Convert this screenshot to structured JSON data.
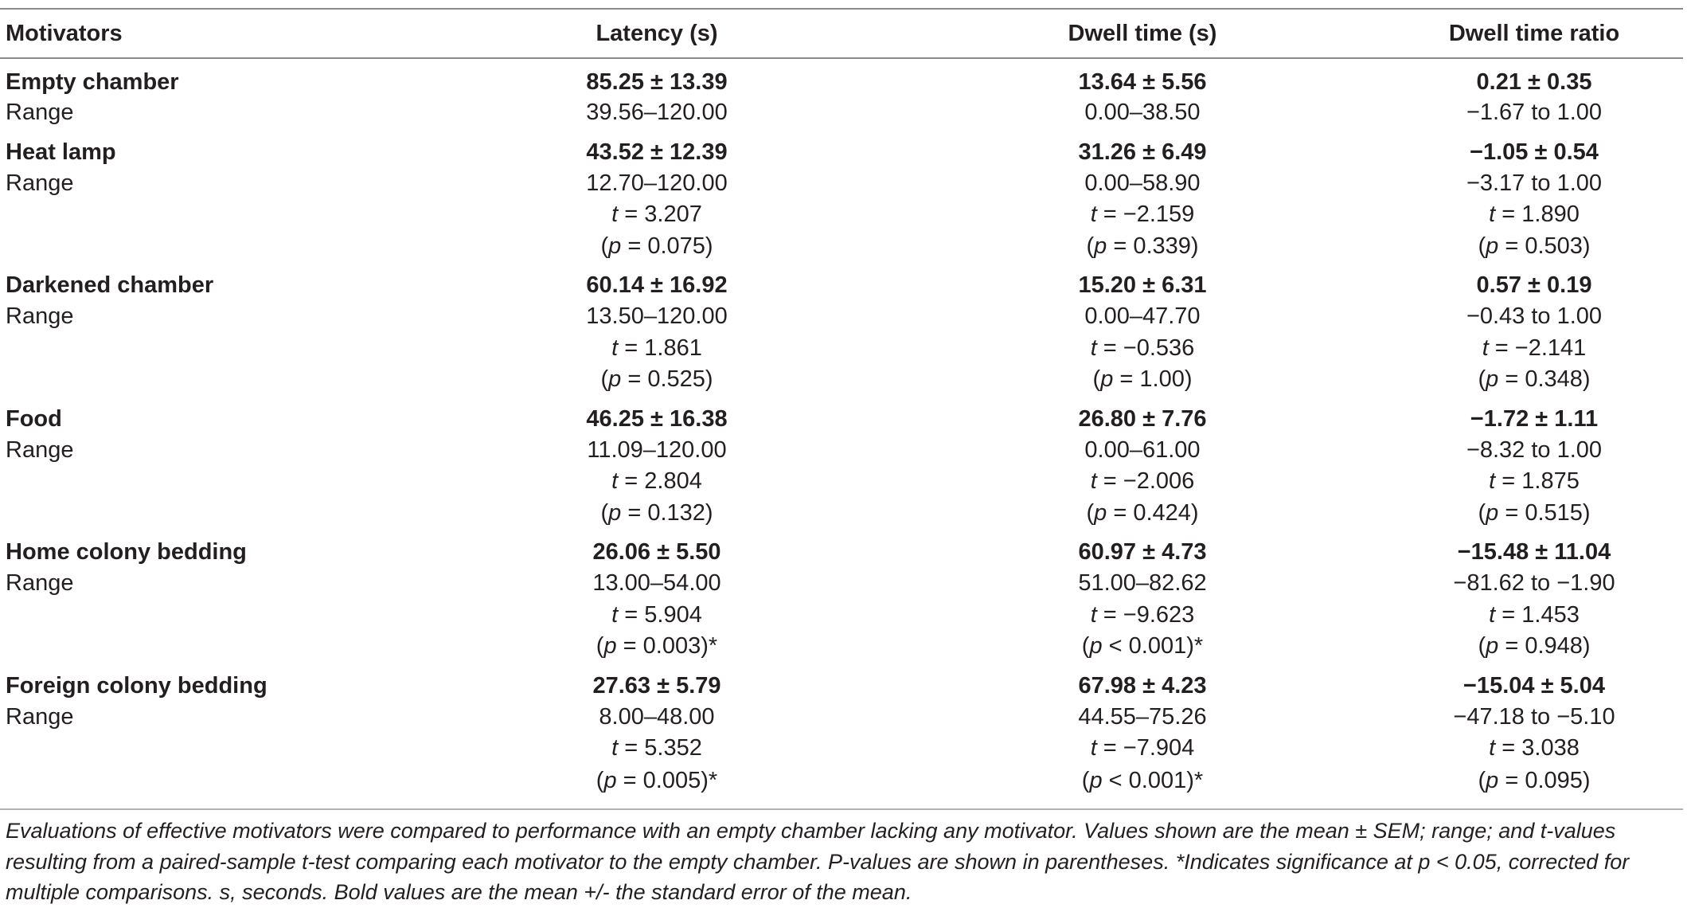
{
  "table": {
    "headers": [
      "Motivators",
      "Latency (s)",
      "Dwell time (s)",
      "Dwell time ratio"
    ],
    "groups": [
      {
        "name": "Empty chamber",
        "mean": [
          "85.25 ± 13.39",
          "13.64 ± 5.56",
          "0.21 ± 0.35"
        ],
        "range_label": "Range",
        "range": [
          "39.56–120.00",
          "0.00–38.50",
          "−1.67 to 1.00"
        ],
        "t": null,
        "p": null
      },
      {
        "name": "Heat lamp",
        "mean": [
          "43.52 ± 12.39",
          "31.26 ± 6.49",
          "−1.05 ± 0.54"
        ],
        "range_label": "Range",
        "range": [
          "12.70–120.00",
          "0.00–58.90",
          "−3.17 to 1.00"
        ],
        "t": [
          "t = 3.207",
          "t = −2.159",
          "t = 1.890"
        ],
        "p": [
          "(p = 0.075)",
          "(p = 0.339)",
          "(p = 0.503)"
        ]
      },
      {
        "name": "Darkened chamber",
        "mean": [
          "60.14 ± 16.92",
          "15.20 ± 6.31",
          "0.57 ± 0.19"
        ],
        "range_label": "Range",
        "range": [
          "13.50–120.00",
          "0.00–47.70",
          "−0.43 to 1.00"
        ],
        "t": [
          "t = 1.861",
          "t = −0.536",
          "t = −2.141"
        ],
        "p": [
          "(p = 0.525)",
          "(p = 1.00)",
          "(p = 0.348)"
        ]
      },
      {
        "name": "Food",
        "mean": [
          "46.25 ± 16.38",
          "26.80 ± 7.76",
          "−1.72 ± 1.11"
        ],
        "range_label": "Range",
        "range": [
          "11.09–120.00",
          "0.00–61.00",
          "−8.32 to 1.00"
        ],
        "t": [
          "t = 2.804",
          "t = −2.006",
          "t = 1.875"
        ],
        "p": [
          "(p = 0.132)",
          "(p = 0.424)",
          "(p = 0.515)"
        ]
      },
      {
        "name": "Home colony bedding",
        "mean": [
          "26.06 ± 5.50",
          "60.97 ± 4.73",
          "−15.48 ± 11.04"
        ],
        "range_label": "Range",
        "range": [
          "13.00–54.00",
          "51.00–82.62",
          "−81.62 to −1.90"
        ],
        "t": [
          "t = 5.904",
          "t = −9.623",
          "t = 1.453"
        ],
        "p": [
          "(p = 0.003)*",
          "(p < 0.001)*",
          "(p = 0.948)"
        ]
      },
      {
        "name": "Foreign colony bedding",
        "mean": [
          "27.63 ± 5.79",
          "67.98 ± 4.23",
          "−15.04 ± 5.04"
        ],
        "range_label": "Range",
        "range": [
          "8.00–48.00",
          "44.55–75.26",
          "−47.18 to −5.10"
        ],
        "t": [
          "t = 5.352",
          "t = −7.904",
          "t = 3.038"
        ],
        "p": [
          "(p = 0.005)*",
          "(p < 0.001)*",
          "(p = 0.095)"
        ]
      }
    ]
  },
  "footnote": "Evaluations of effective motivators were compared to performance with an empty chamber lacking any motivator. Values shown are the mean ± SEM; range; and t-values resulting from a paired-sample t-test comparing each motivator to the empty chamber. P-values are shown in parentheses. *Indicates significance at p < 0.05, corrected for multiple comparisons. s, seconds. Bold values are the mean +/- the standard error of the mean."
}
